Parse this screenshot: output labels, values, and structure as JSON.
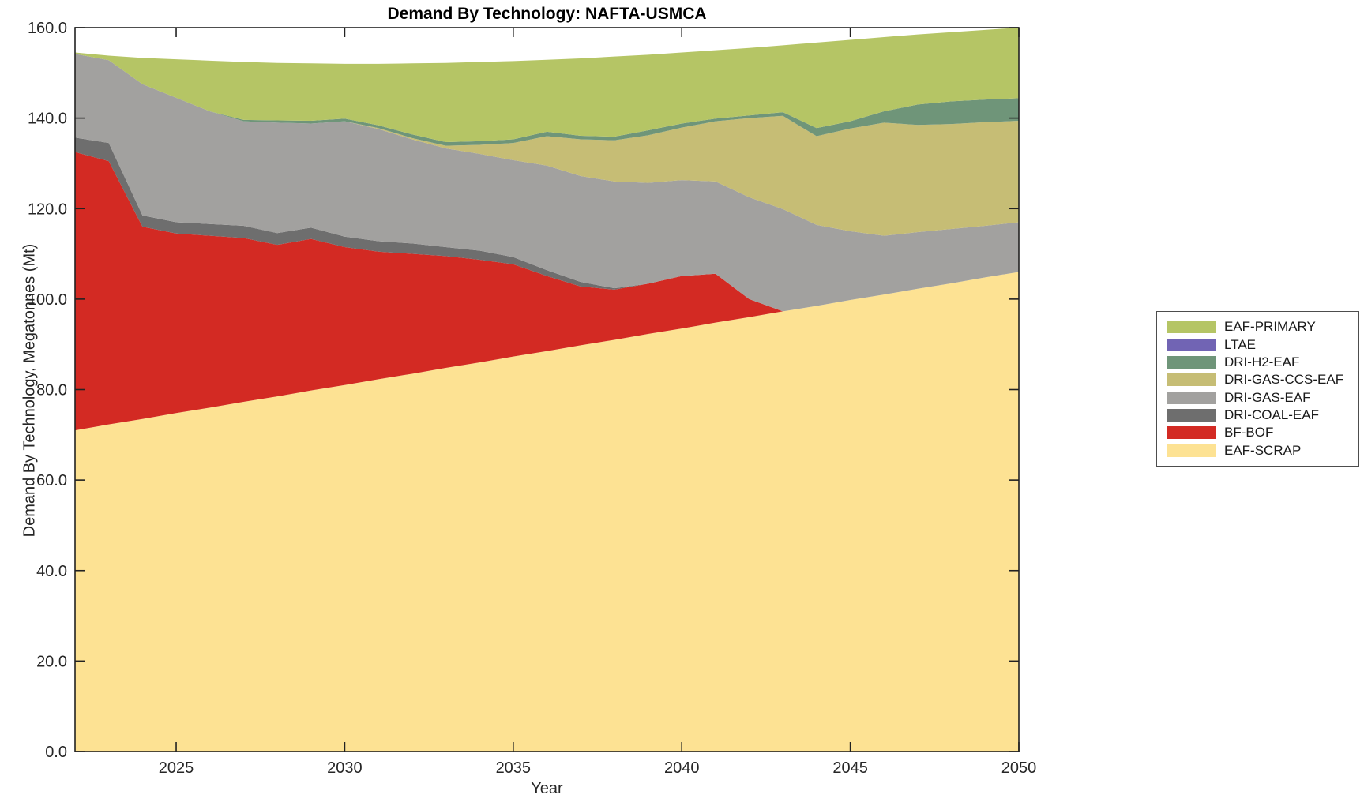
{
  "figure": {
    "title": "Demand By Technology: NAFTA-USMCA",
    "xlabel": "Year",
    "ylabel": "Demand By Technology, Megatonnes (Mt)"
  },
  "chart_data": {
    "type": "area",
    "stacked": true,
    "title": "Demand By Technology: NAFTA-USMCA",
    "xlabel": "Year",
    "ylabel": "Demand By Technology, Megatonnes (Mt)",
    "xlim": [
      2022,
      2050
    ],
    "ylim": [
      0,
      160
    ],
    "grid": false,
    "x": [
      2022,
      2023,
      2024,
      2025,
      2026,
      2027,
      2028,
      2029,
      2030,
      2031,
      2032,
      2033,
      2034,
      2035,
      2036,
      2037,
      2038,
      2039,
      2040,
      2041,
      2042,
      2043,
      2044,
      2045,
      2046,
      2047,
      2048,
      2049,
      2050
    ],
    "xticks": [
      "2025",
      "2030",
      "2035",
      "2040",
      "2045",
      "2050"
    ],
    "xtick_values": [
      2025,
      2030,
      2035,
      2040,
      2045,
      2050
    ],
    "yticks": [
      "0.0",
      "20.0",
      "40.0",
      "60.0",
      "80.0",
      "100.0",
      "120.0",
      "140.0",
      "160.0"
    ],
    "ytick_values": [
      0,
      20,
      40,
      60,
      80,
      100,
      120,
      140,
      160
    ],
    "series": [
      {
        "name": "EAF-SCRAP",
        "color": "#fde293",
        "values": [
          71.0,
          72.3,
          73.5,
          74.8,
          76.0,
          77.3,
          78.5,
          79.8,
          81.0,
          82.3,
          83.5,
          84.8,
          86.0,
          87.3,
          88.5,
          89.8,
          91.0,
          92.3,
          93.5,
          94.8,
          96.0,
          97.3,
          98.5,
          99.8,
          101.0,
          102.3,
          103.5,
          104.8,
          106.0
        ]
      },
      {
        "name": "BF-BOF",
        "color": "#d32a23",
        "values": [
          61.5,
          58.2,
          42.5,
          39.7,
          38.0,
          36.2,
          33.5,
          33.5,
          30.5,
          28.2,
          26.5,
          24.7,
          22.7,
          20.4,
          16.6,
          13.0,
          11.1,
          11.1,
          11.6,
          10.8,
          4.0,
          0,
          0,
          0,
          0,
          0,
          0,
          0,
          0
        ]
      },
      {
        "name": "DRI-COAL-EAF",
        "color": "#6e6e6e",
        "values": [
          3.2,
          4.0,
          2.5,
          2.5,
          2.6,
          2.7,
          2.6,
          2.5,
          2.3,
          2.3,
          2.3,
          2.0,
          2.0,
          1.6,
          1.3,
          1.0,
          0.3,
          0,
          0,
          0,
          0,
          0,
          0,
          0,
          0,
          0,
          0,
          0,
          0
        ]
      },
      {
        "name": "DRI-GAS-EAF",
        "color": "#a2a19f",
        "values": [
          18.5,
          18.3,
          29.0,
          27.5,
          24.9,
          23.1,
          24.4,
          23.0,
          25.5,
          24.8,
          23.0,
          21.8,
          21.4,
          21.4,
          23.1,
          23.4,
          23.6,
          22.3,
          21.2,
          20.4,
          22.5,
          22.6,
          17.9,
          15.2,
          13.0,
          12.5,
          12.0,
          11.4,
          11.0
        ]
      },
      {
        "name": "DRI-GAS-CCS-EAF",
        "color": "#c6bd75",
        "values": [
          0,
          0,
          0,
          0,
          0,
          0,
          0,
          0,
          0,
          0.2,
          0.3,
          0.6,
          2.0,
          3.8,
          6.5,
          8.1,
          9.1,
          10.5,
          11.6,
          13.3,
          17.5,
          20.6,
          19.6,
          22.7,
          25.0,
          23.7,
          23.2,
          22.9,
          22.4
        ]
      },
      {
        "name": "DRI-H2-EAF",
        "color": "#6f9579",
        "values": [
          0,
          0,
          0,
          0,
          0,
          0.3,
          0.5,
          0.6,
          0.6,
          0.6,
          0.8,
          0.8,
          0.8,
          0.8,
          1.0,
          0.8,
          0.8,
          1.1,
          0.9,
          0.6,
          0.6,
          0.8,
          1.8,
          1.6,
          2.5,
          4.5,
          5.0,
          5.0,
          5.0
        ]
      },
      {
        "name": "LTAE",
        "color": "#7164b4",
        "values": [
          0,
          0,
          0,
          0,
          0,
          0,
          0,
          0,
          0,
          0,
          0,
          0,
          0,
          0,
          0,
          0,
          0,
          0,
          0,
          0,
          0,
          0,
          0,
          0,
          0,
          0,
          0,
          0,
          0
        ]
      },
      {
        "name": "EAF-PRIMARY",
        "color": "#b5c565",
        "values": [
          0.3,
          1.0,
          5.8,
          8.5,
          11.2,
          12.8,
          12.7,
          12.7,
          12.1,
          13.6,
          15.7,
          17.5,
          17.5,
          17.3,
          15.9,
          17.1,
          17.7,
          16.7,
          15.7,
          15.1,
          14.9,
          14.8,
          18.9,
          18.0,
          16.4,
          15.5,
          15.3,
          15.4,
          15.6
        ]
      }
    ],
    "legend": {
      "position": "right-outside",
      "entries": [
        "EAF-PRIMARY",
        "LTAE",
        "DRI-H2-EAF",
        "DRI-GAS-CCS-EAF",
        "DRI-GAS-EAF",
        "DRI-COAL-EAF",
        "BF-BOF",
        "EAF-SCRAP"
      ]
    }
  }
}
